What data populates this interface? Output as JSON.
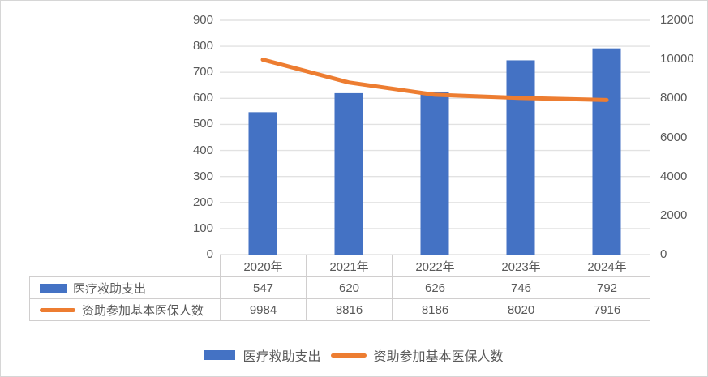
{
  "chart_data": {
    "type": "combo-bar-line",
    "categories": [
      "2020年",
      "2021年",
      "2022年",
      "2023年",
      "2024年"
    ],
    "series": [
      {
        "name": "医疗救助支出",
        "type": "bar",
        "axis": "left",
        "color": "#4472C4",
        "values": [
          547,
          620,
          626,
          746,
          792
        ]
      },
      {
        "name": "资助参加基本医保人数",
        "type": "line",
        "axis": "right",
        "color": "#ED7D31",
        "values": [
          9984,
          8816,
          8186,
          8020,
          7916
        ]
      }
    ],
    "left_axis": {
      "min": 0,
      "max": 900,
      "step": 100,
      "tick_labels": [
        "0",
        "100",
        "200",
        "300",
        "400",
        "500",
        "600",
        "700",
        "800",
        "900"
      ]
    },
    "right_axis": {
      "min": 0,
      "max": 12000,
      "step": 2000,
      "tick_labels": [
        "0",
        "2000",
        "4000",
        "6000",
        "8000",
        "10000",
        "12000"
      ]
    },
    "gridlines": true,
    "legend_position": "bottom",
    "data_table_shown": true,
    "title": "",
    "styles": {
      "gridline_color": "#E2E2E2",
      "table_border_color": "#D0CECE",
      "text_color": "#595959",
      "background": "#FFFFFF",
      "outer_border_color": "#D6D6D6"
    }
  }
}
